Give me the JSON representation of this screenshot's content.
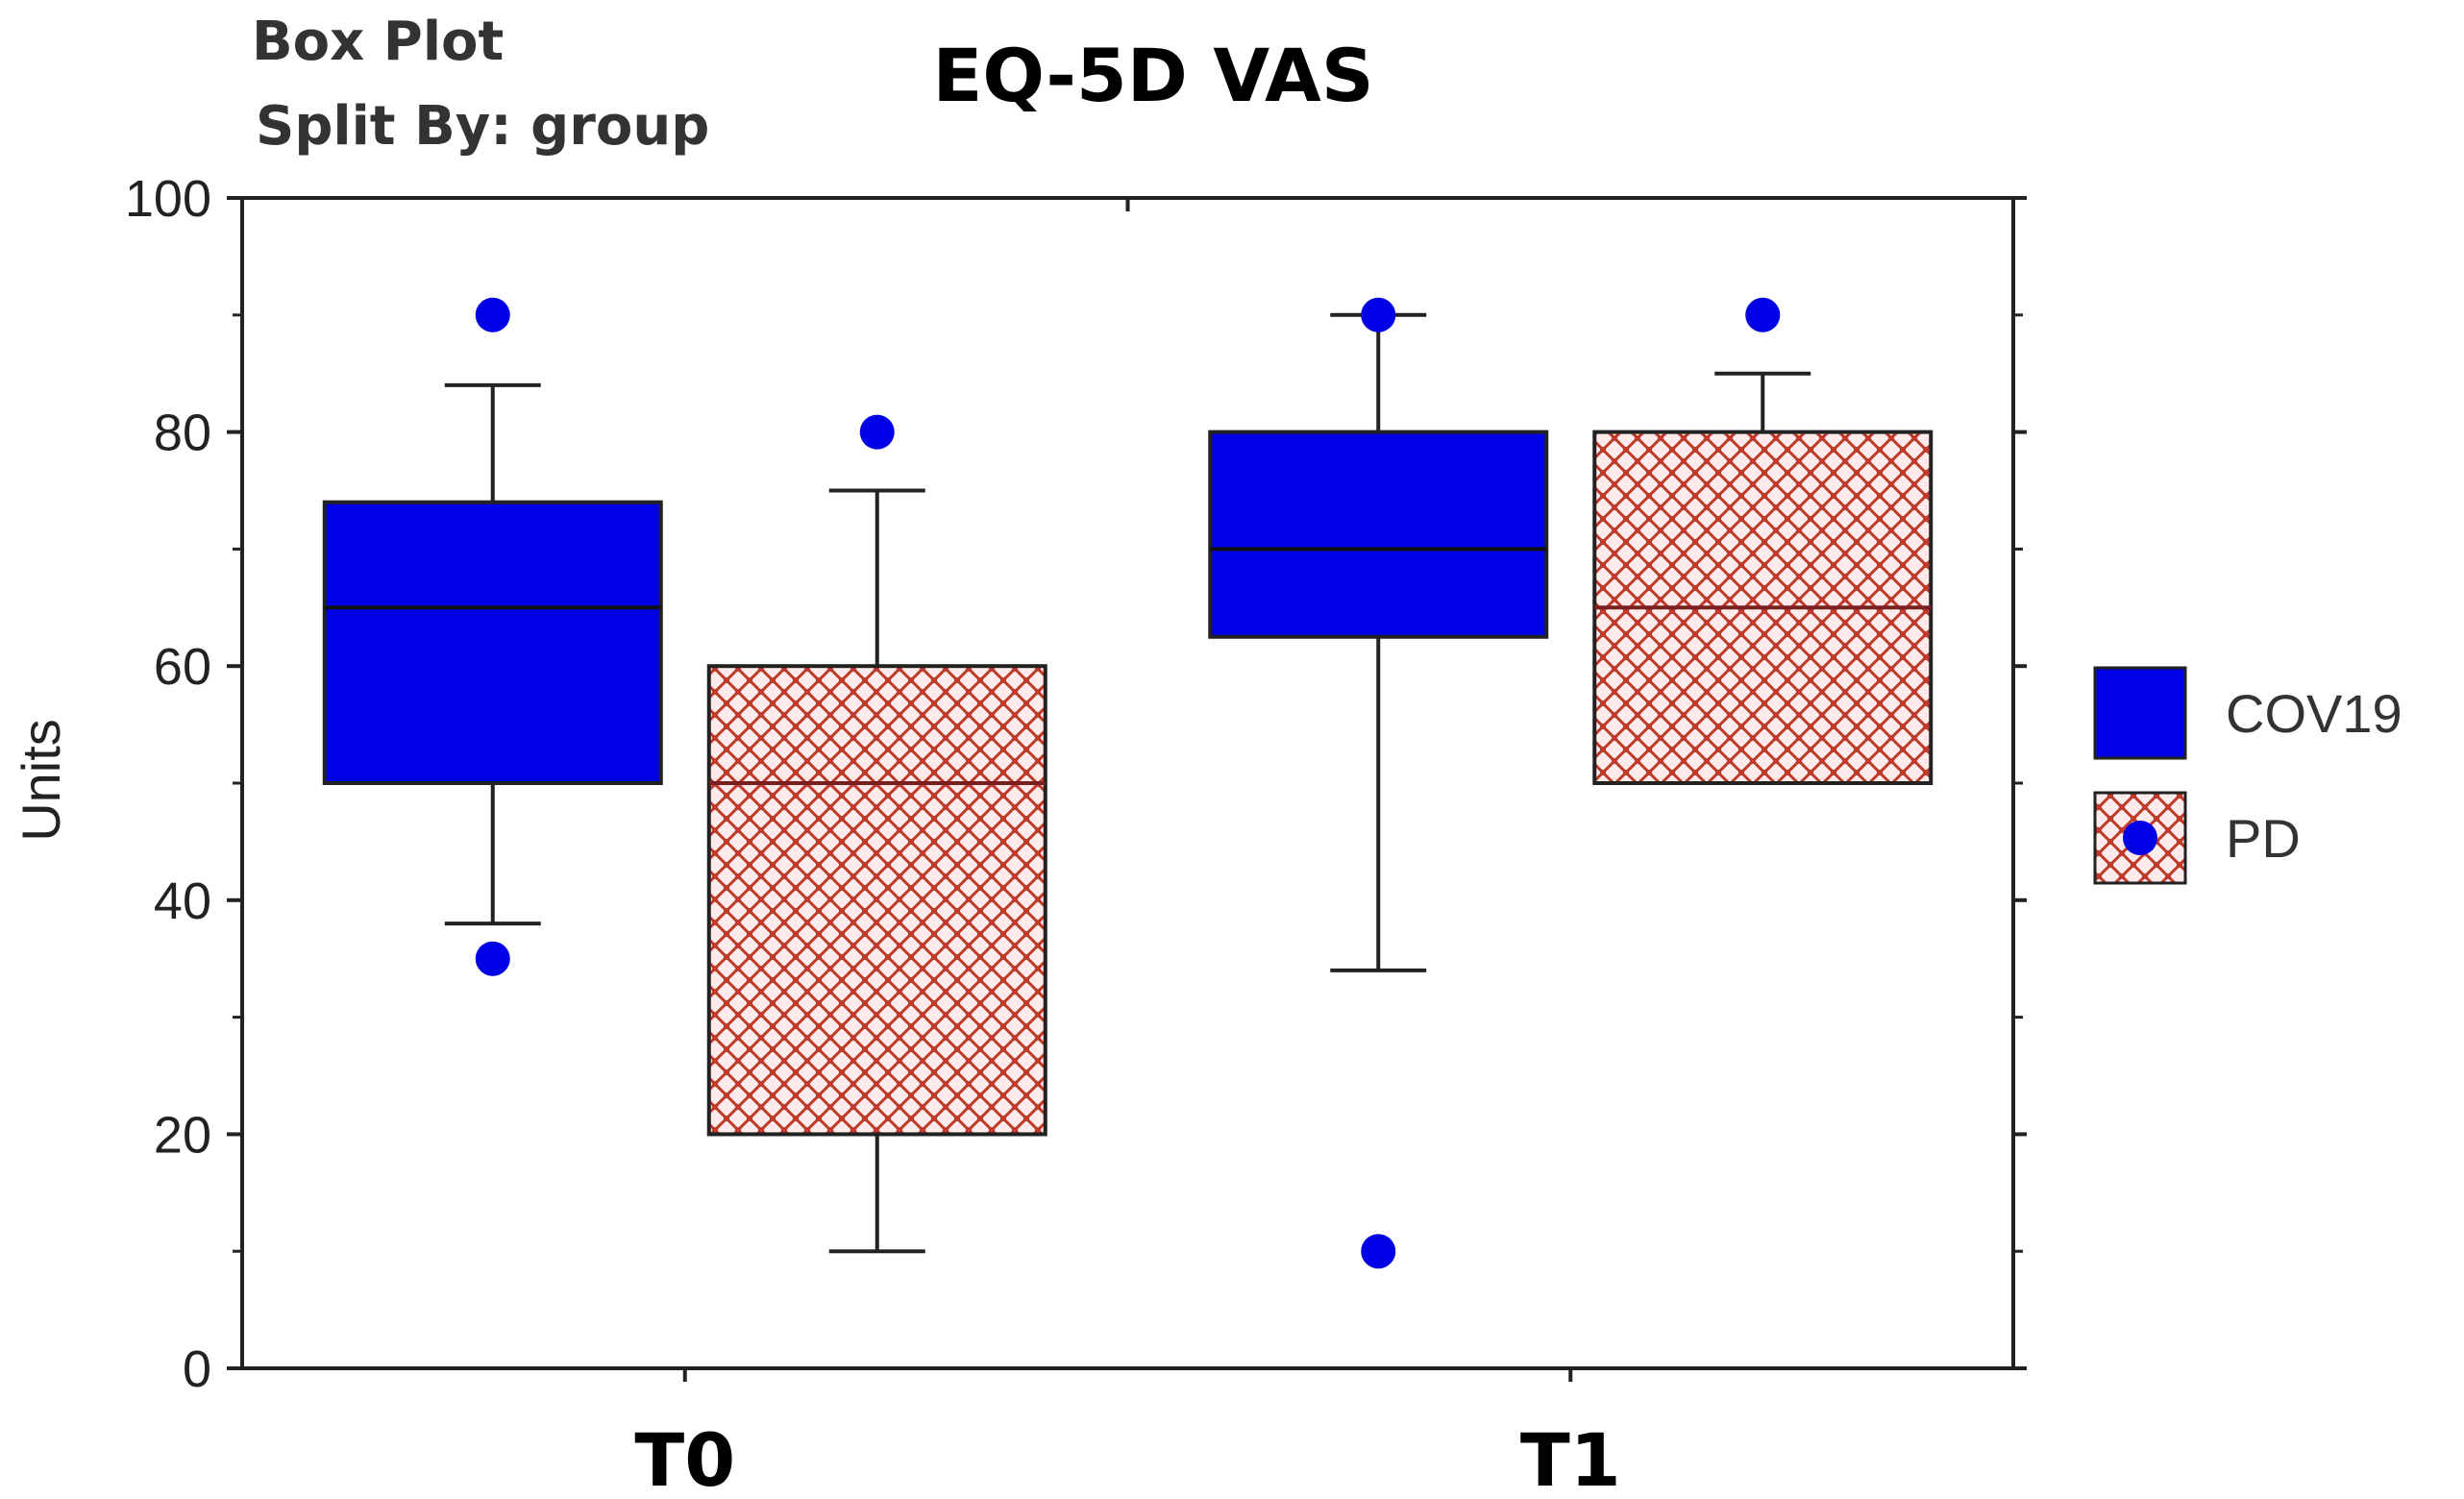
{
  "header": {
    "plot_kind": "Box Plot",
    "split_by": "Split By: group"
  },
  "chart_data": {
    "type": "box",
    "title": "EQ-5D VAS",
    "xlabel": "",
    "ylabel": "Units",
    "ylim": [
      0,
      100
    ],
    "yticks": [
      0,
      20,
      40,
      60,
      80,
      100
    ],
    "categories": [
      "T0",
      "T1"
    ],
    "legend_position": "right",
    "series": [
      {
        "name": "COV19",
        "color": "#0000e6",
        "pattern": "solid",
        "boxes": [
          {
            "category": "T0",
            "whisker_low": 38,
            "q1": 50,
            "median": 65,
            "q3": 74,
            "whisker_high": 84,
            "outliers": [
              90,
              35
            ]
          },
          {
            "category": "T1",
            "whisker_low": 34,
            "q1": 62.5,
            "median": 70,
            "q3": 80,
            "whisker_high": 90,
            "outliers": [
              90,
              10
            ]
          }
        ]
      },
      {
        "name": "PD",
        "color": "#c0392b",
        "pattern": "crosshatch",
        "boxes": [
          {
            "category": "T0",
            "whisker_low": 10,
            "q1": 20,
            "median": 50,
            "q3": 60,
            "whisker_high": 75,
            "outliers": [
              80
            ]
          },
          {
            "category": "T1",
            "whisker_low": 50,
            "q1": 50,
            "median": 65,
            "q3": 80,
            "whisker_high": 85,
            "outliers": [
              90
            ]
          }
        ]
      }
    ],
    "outlier_color": "#0000e6"
  }
}
